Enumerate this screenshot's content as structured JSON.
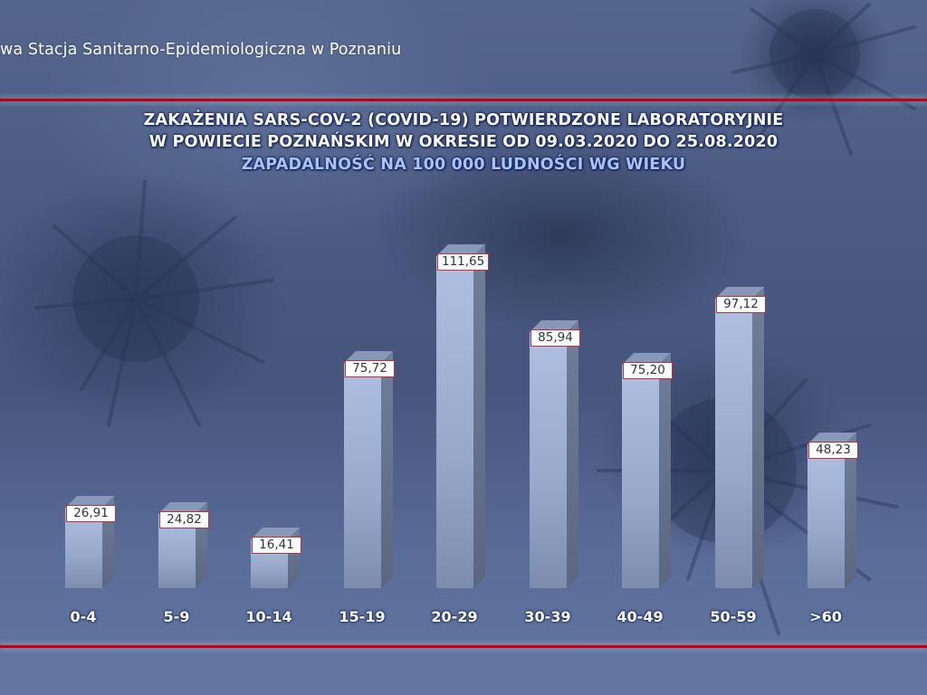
{
  "header": {
    "institution_text": "wa Stacja Sanitarno-Epidemiologiczna w Poznaniu"
  },
  "title": {
    "line1": "ZAKAŻENIA SARS-COV-2 (COVID-19) POTWIERDZONE LABORATORYJNIE",
    "line2": "W POWIECIE POZNAŃSKIM W OKRESIE OD 09.03.2020 DO 25.08.2020",
    "line3": "ZAPADALNOŚĆ NA 100 000 LUDNOŚCI WG WIEKU"
  },
  "colors": {
    "accent_line": "#c4000a",
    "title_text": "#ffffff",
    "subtitle_text": "#a9c4f2",
    "bar_front": "#aebfe2",
    "bar_side": "#6e7c97",
    "label_border": "#c0303a"
  },
  "labels": {
    "values": [
      "26,91",
      "24,82",
      "16,41",
      "75,72",
      "111,65",
      "85,94",
      "75,20",
      "97,12",
      "48,23"
    ],
    "categories": [
      "0-4",
      "5-9",
      "10-14",
      "15-19",
      "20-29",
      "30-39",
      "40-49",
      "50-59",
      ">60"
    ]
  },
  "chart_data": {
    "type": "bar",
    "title": "ZAKAŻENIA SARS-COV-2 (COVID-19) POTWIERDZONE LABORATORYJNIE W POWIECIE POZNAŃSKIM W OKRESIE OD 09.03.2020 DO 25.08.2020",
    "subtitle": "ZAPADALNOŚĆ NA 100 000 LUDNOŚCI WG WIEKU",
    "categories": [
      "0-4",
      "5-9",
      "10-14",
      "15-19",
      "20-29",
      "30-39",
      "40-49",
      "50-59",
      ">60"
    ],
    "values": [
      26.91,
      24.82,
      16.41,
      75.72,
      111.65,
      85.94,
      75.2,
      97.12,
      48.23
    ],
    "data_labels": [
      "26,91",
      "24,82",
      "16,41",
      "75,72",
      "111,65",
      "85,94",
      "75,20",
      "97,12",
      "48,23"
    ],
    "xlabel": "",
    "ylabel": "",
    "ylim": [
      0,
      120
    ],
    "grid": false,
    "legend": "none",
    "style": "3d-column"
  }
}
